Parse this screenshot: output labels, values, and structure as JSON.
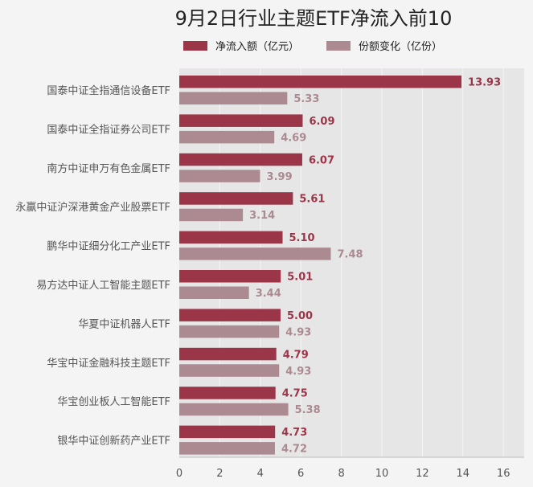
{
  "chart_data": {
    "type": "bar",
    "orientation": "horizontal",
    "title": "9月2日行业主题ETF净流入前10",
    "categories": [
      "国泰中证全指通信设备ETF",
      "国泰中证全指证券公司ETF",
      "南方中证申万有色金属ETF",
      "永赢中证沪深港黄金产业股票ETF",
      "鹏华中证细分化工产业ETF",
      "易方达中证人工智能主题ETF",
      "华夏中证机器人ETF",
      "华宝中证金融科技主题ETF",
      "华宝创业板人工智能ETF",
      "银华中证创新药产业ETF"
    ],
    "series": [
      {
        "name": "净流入额（亿元）",
        "color": "#9b3548",
        "values": [
          13.93,
          6.09,
          6.07,
          5.61,
          5.1,
          5.01,
          5.0,
          4.79,
          4.75,
          4.73
        ],
        "labels": [
          "13.93",
          "6.09",
          "6.07",
          "5.61",
          "5.10",
          "5.01",
          "5.00",
          "4.79",
          "4.75",
          "4.73"
        ]
      },
      {
        "name": "份额变化（亿份）",
        "color": "#ab8a92",
        "values": [
          5.33,
          4.69,
          3.99,
          3.14,
          7.48,
          3.44,
          4.93,
          4.93,
          5.38,
          4.72
        ],
        "labels": [
          "5.33",
          "4.69",
          "3.99",
          "3.14",
          "7.48",
          "3.44",
          "4.93",
          "4.93",
          "5.38",
          "4.72"
        ]
      }
    ],
    "xlim": [
      0,
      17
    ],
    "xticks": [
      "0",
      "2",
      "4",
      "6",
      "8",
      "10",
      "12",
      "14",
      "16"
    ],
    "grid": true,
    "legend_position": "top"
  }
}
